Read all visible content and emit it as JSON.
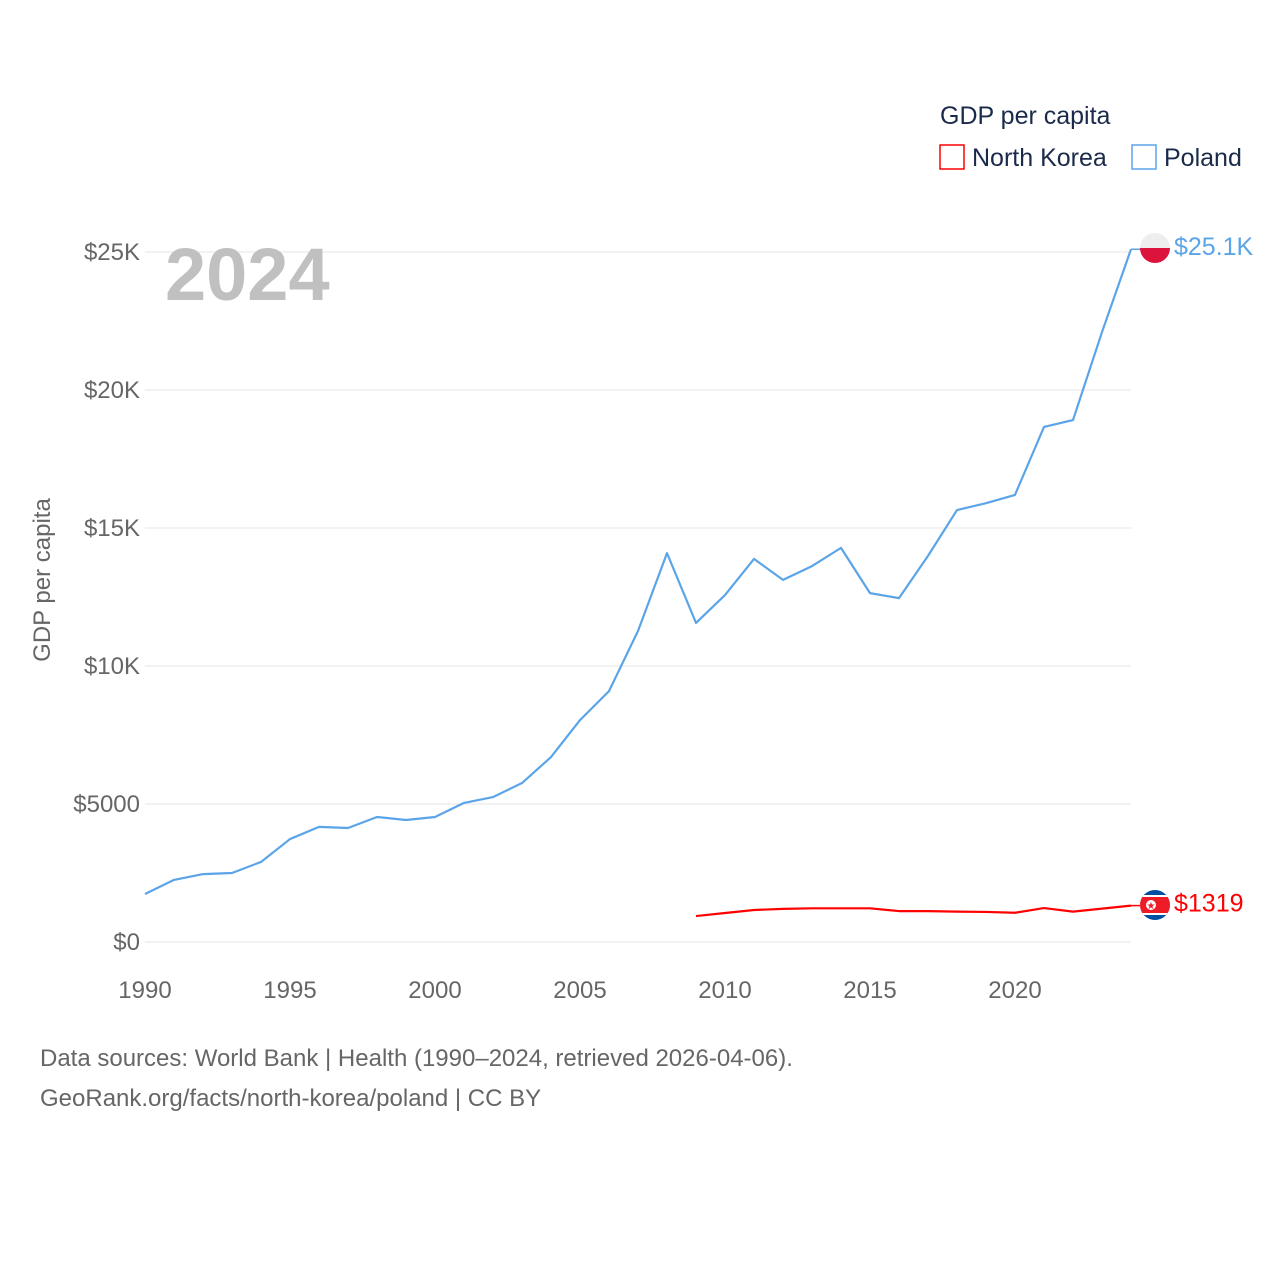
{
  "chart_data": {
    "type": "line",
    "title": "GDP per capita",
    "ylabel": "GDP per capita",
    "xlabel": "",
    "year_label": "2024",
    "xlim": [
      1990,
      2024
    ],
    "ylim": [
      0,
      25000
    ],
    "grid": true,
    "legend_placement": "top-right",
    "x_ticks": [
      1990,
      1995,
      2000,
      2005,
      2010,
      2015,
      2020
    ],
    "x_tick_labels": [
      "1990",
      "1995",
      "2000",
      "2005",
      "2010",
      "2015",
      "2020"
    ],
    "y_ticks": [
      0,
      5000,
      10000,
      15000,
      20000,
      25000
    ],
    "y_tick_labels": [
      "$0",
      "$5000",
      "$10K",
      "$15K",
      "$20K",
      "$25K"
    ],
    "series": [
      {
        "name": "North Korea",
        "color": "#ff0000",
        "end_label": "$1319",
        "x": [
          2009,
          2010,
          2011,
          2012,
          2013,
          2014,
          2015,
          2016,
          2017,
          2018,
          2019,
          2020,
          2021,
          2022,
          2023,
          2024
        ],
        "values": [
          940,
          1050,
          1160,
          1200,
          1220,
          1220,
          1220,
          1120,
          1120,
          1100,
          1090,
          1060,
          1230,
          1100,
          1210,
          1319
        ]
      },
      {
        "name": "Poland",
        "color": "#5ba4e8",
        "end_label": "$25.1K",
        "x": [
          1990,
          1991,
          1992,
          1993,
          1994,
          1995,
          1996,
          1997,
          1998,
          1999,
          2000,
          2001,
          2002,
          2003,
          2004,
          2005,
          2006,
          2007,
          2008,
          2009,
          2010,
          2011,
          2012,
          2013,
          2014,
          2015,
          2016,
          2017,
          2018,
          2019,
          2020,
          2021,
          2022,
          2023,
          2024
        ],
        "values": [
          1740,
          2250,
          2460,
          2500,
          2900,
          3730,
          4170,
          4130,
          4530,
          4420,
          4530,
          5040,
          5250,
          5760,
          6700,
          8040,
          9090,
          11270,
          14090,
          11560,
          12570,
          13880,
          13120,
          13620,
          14280,
          12640,
          12460,
          13990,
          15650,
          15900,
          16200,
          18660,
          18910,
          22100,
          25100
        ]
      }
    ]
  },
  "footer": {
    "line1": "Data sources: World Bank | Health (1990–2024, retrieved 2026-04-06).",
    "line2": "GeoRank.org/facts/north-korea/poland | CC BY"
  }
}
